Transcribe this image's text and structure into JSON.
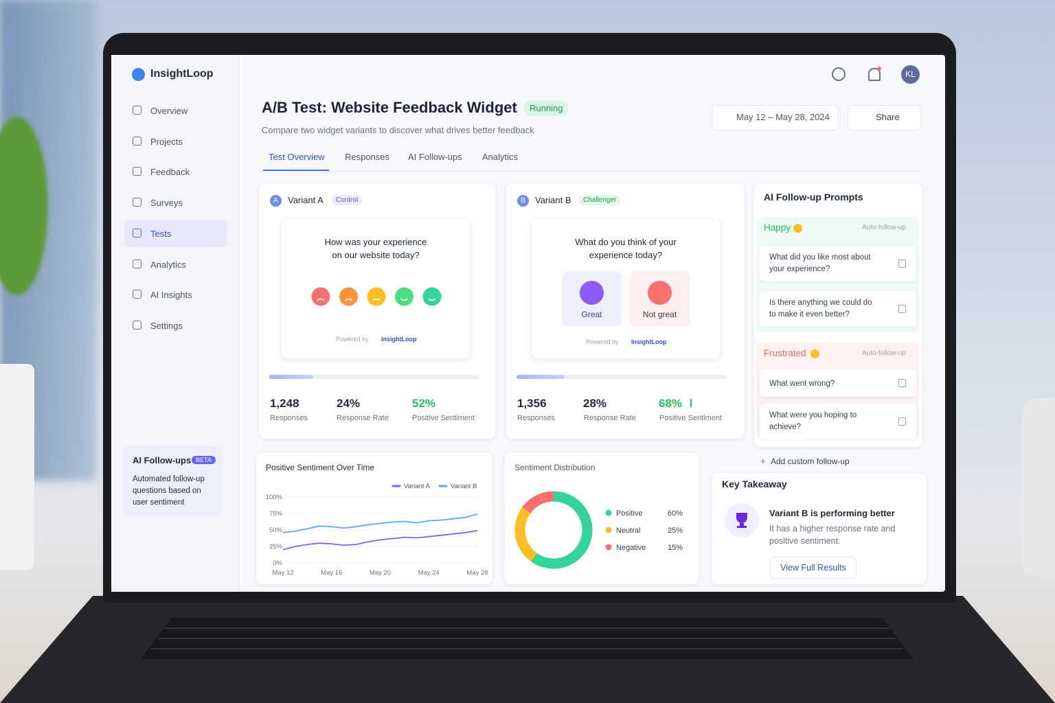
{
  "app": {
    "name": "InsightLoop",
    "avatar": "KL"
  },
  "nav": [
    "Overview",
    "Projects",
    "Feedback",
    "Surveys",
    "Tests",
    "Analytics",
    "AI Insights",
    "Settings"
  ],
  "promo": {
    "title": "AI Follow-ups",
    "badge": "BETA",
    "text": "Automated follow-up questions based on user sentiment"
  },
  "header": {
    "title": "A/B Test: Website Feedback Widget",
    "status": "Running",
    "subtitle": "Compare two widget variants to discover what drives better feedback",
    "date_range": "May 12 – May 28, 2024",
    "share": "Share"
  },
  "tabs": [
    "Test Overview",
    "Responses",
    "AI Follow-ups",
    "Analytics"
  ],
  "variants": [
    {
      "badge": "A",
      "name": "Variant A",
      "role": "Control",
      "question": "How was your experience on our website today?",
      "options": [],
      "powered_by": "Powered by",
      "brand": "InsightLoop",
      "stats": [
        {
          "value": "1,248",
          "label": "Responses"
        },
        {
          "value": "24%",
          "label": "Response Rate"
        },
        {
          "value": "52%",
          "label": "Positive Sentiment"
        }
      ]
    },
    {
      "badge": "B",
      "name": "Variant B",
      "role": "Challenger",
      "question": "What do you think of your experience today?",
      "options": [
        "Great",
        "Not great"
      ],
      "powered_by": "Powered by",
      "brand": "InsightLoop",
      "stats": [
        {
          "value": "1,356",
          "label": "Responses"
        },
        {
          "value": "28%",
          "label": "Response Rate"
        },
        {
          "value": "68%",
          "label": "Positive Sentiment"
        }
      ]
    }
  ],
  "followups": {
    "title": "AI Follow-up Prompts",
    "groups": [
      {
        "label": "Happy",
        "tag": "Auto-follow-up",
        "questions": [
          "What did you like most about your experience?",
          "Is there anything we could do to make it even better?"
        ]
      },
      {
        "label": "Frustrated",
        "tag": "Auto-follow-up",
        "questions": [
          "What went wrong?",
          "What were you hoping to achieve?"
        ]
      }
    ],
    "add": "Add custom follow-up"
  },
  "takeaway": {
    "title": "Key Takeaway",
    "headline": "Variant B is performing better",
    "text": "It has a higher response rate and positive sentiment.",
    "button": "View Full Results"
  },
  "chart_data": [
    {
      "type": "line",
      "title": "Positive Sentiment Over Time",
      "categories": [
        "May 12",
        null,
        null,
        null,
        "May 16",
        null,
        null,
        null,
        "May 20",
        null,
        null,
        null,
        "May 24",
        null,
        null,
        null,
        "May 28"
      ],
      "series": [
        {
          "name": "Variant A",
          "color": "#8b5cf6",
          "values": [
            20,
            25,
            28,
            30,
            29,
            27,
            28,
            32,
            35,
            37,
            39,
            38,
            40,
            42,
            44,
            46,
            49
          ]
        },
        {
          "name": "Variant B",
          "color": "#60a5fa",
          "values": [
            46,
            48,
            52,
            56,
            55,
            53,
            55,
            58,
            60,
            62,
            63,
            61,
            64,
            65,
            67,
            69,
            74
          ]
        }
      ],
      "ylim": [
        0,
        100
      ],
      "yticks": [
        {
          "value": 0,
          "label": "0%"
        },
        {
          "value": 25,
          "label": "25%"
        },
        {
          "value": 50,
          "label": "50%"
        },
        {
          "value": 75,
          "label": "75%"
        },
        {
          "value": 100,
          "label": "100%"
        }
      ]
    },
    {
      "type": "pie",
      "title": "Sentiment Distribution",
      "categories": [
        "Positive",
        "Neutral",
        "Negative"
      ],
      "values": [
        60,
        25,
        15
      ],
      "value_labels": [
        "60%",
        "25%",
        "15%"
      ],
      "colors": [
        "#34d399",
        "#fbbf24",
        "#f87171"
      ]
    }
  ]
}
